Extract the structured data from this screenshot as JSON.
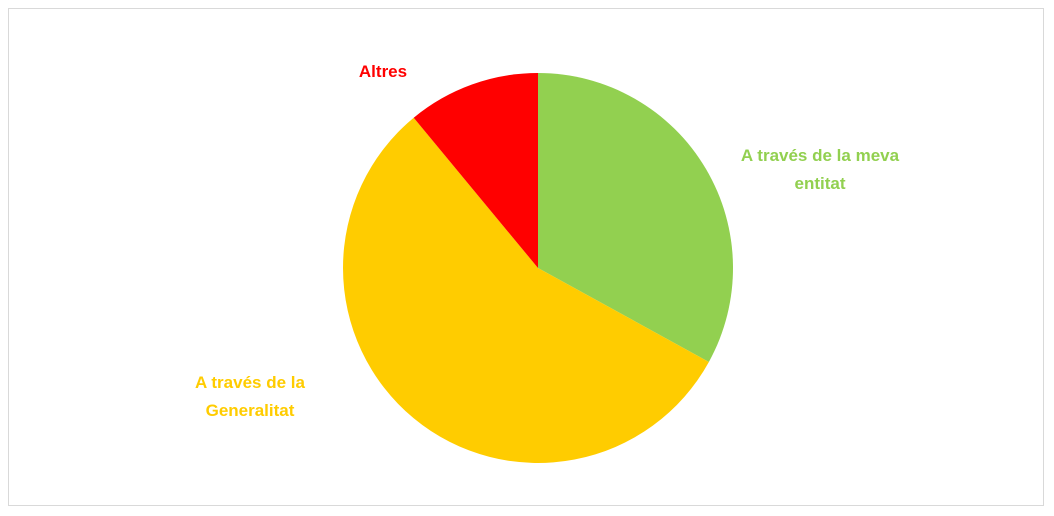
{
  "chart_data": {
    "type": "pie",
    "categories": [
      "A través de la meva entitat",
      "A través de la Generalitat",
      "Altres"
    ],
    "values": [
      33,
      56,
      11
    ],
    "colors": [
      "#92d050",
      "#ffcc00",
      "#ff0000"
    ]
  }
}
